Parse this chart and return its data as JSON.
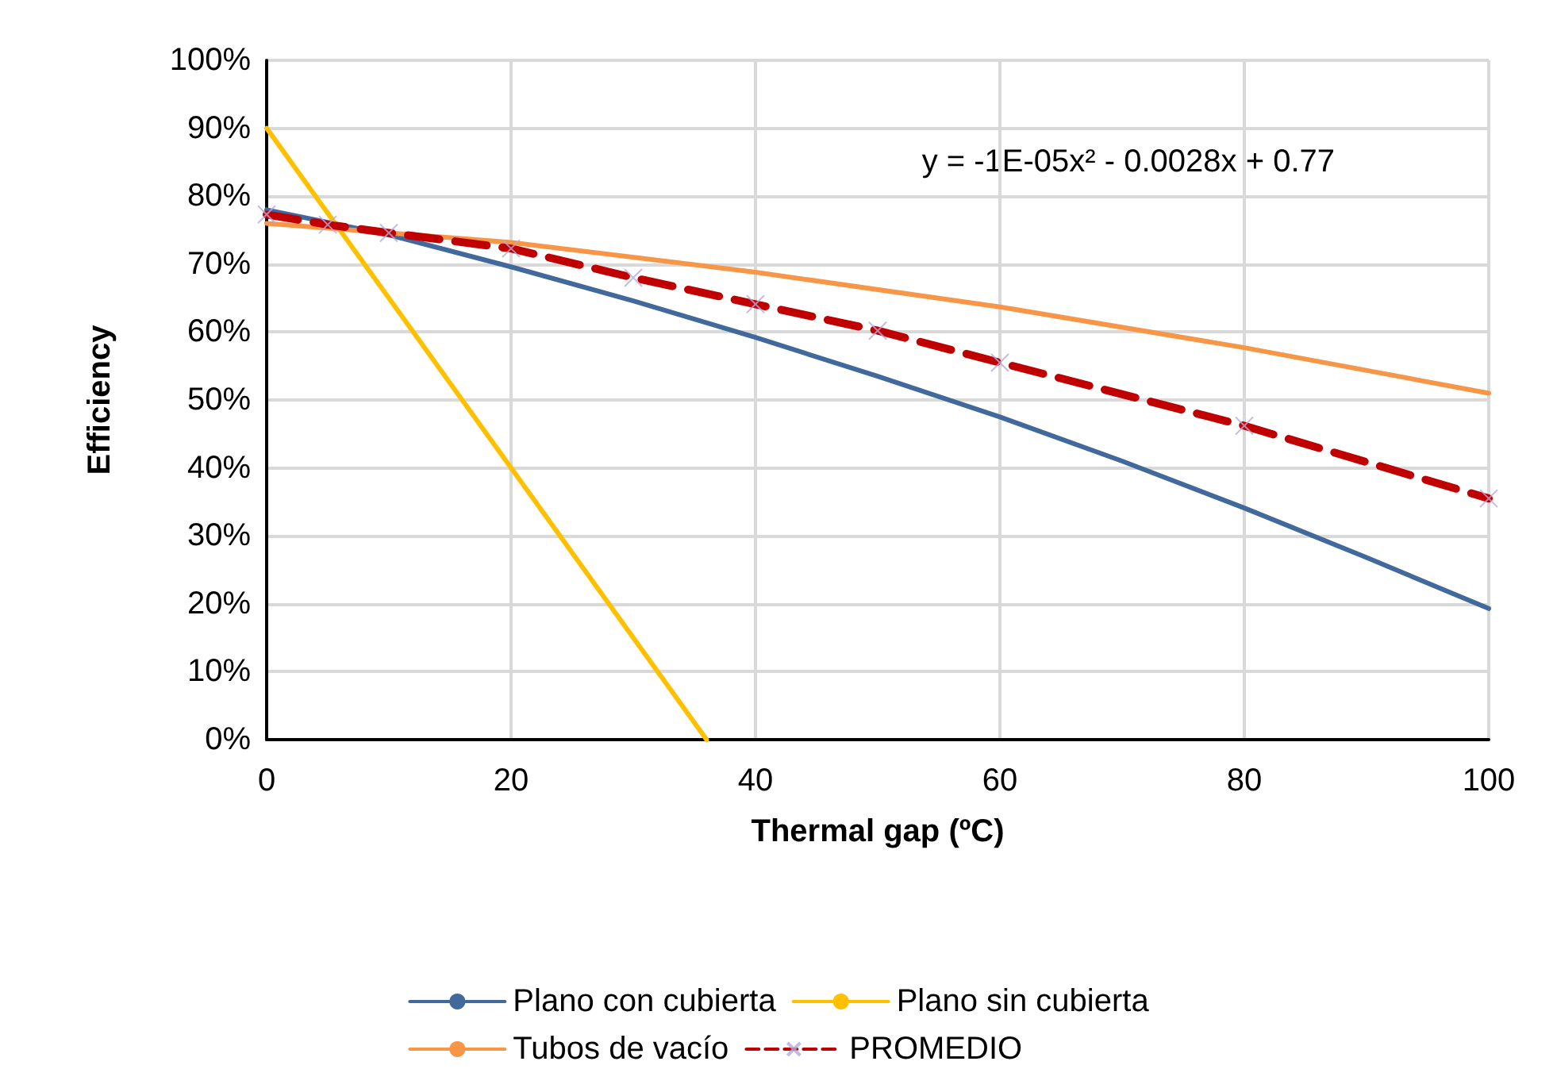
{
  "chart_data": {
    "type": "line",
    "xlabel": "Thermal gap (ºC)",
    "ylabel": "Efficiency",
    "xlim": [
      0,
      100
    ],
    "xticks": [
      0,
      20,
      40,
      60,
      80,
      100
    ],
    "ylim": [
      0,
      1
    ],
    "yticks": [
      {
        "value": 0,
        "label": "0%"
      },
      {
        "value": 0.1,
        "label": "10%"
      },
      {
        "value": 0.2,
        "label": "20%"
      },
      {
        "value": 0.3,
        "label": "30%"
      },
      {
        "value": 0.4,
        "label": "40%"
      },
      {
        "value": 0.5,
        "label": "50%"
      },
      {
        "value": 0.6,
        "label": "60%"
      },
      {
        "value": 0.7,
        "label": "70%"
      },
      {
        "value": 0.8,
        "label": "80%"
      },
      {
        "value": 0.9,
        "label": "90%"
      },
      {
        "value": 1,
        "label": "100%"
      }
    ],
    "grid": true,
    "legend": "bottom",
    "annotations": [
      "y = -1E-05x² - 0.0028x + 0.77"
    ],
    "series": [
      {
        "name": "Plano con cubierta",
        "color": "#41699b",
        "x": [
          0,
          10,
          20,
          30,
          40,
          50,
          60,
          70,
          80,
          90,
          100
        ],
        "values": [
          0.78,
          0.743,
          0.696,
          0.646,
          0.592,
          0.535,
          0.475,
          0.41,
          0.341,
          0.268,
          0.193
        ],
        "marker": "none",
        "line_style": "solid"
      },
      {
        "name": "Plano sin cubierta",
        "color": "#ffc000",
        "x": [
          0,
          20,
          36
        ],
        "values": [
          0.9,
          0.4,
          0
        ],
        "marker": "none",
        "line_style": "solid"
      },
      {
        "name": "Tubos de vacío",
        "color": "#f79646",
        "x": [
          0,
          20,
          40,
          60,
          80,
          100
        ],
        "values": [
          0.76,
          0.732,
          0.688,
          0.637,
          0.577,
          0.51
        ],
        "marker": "none",
        "line_style": "solid"
      },
      {
        "name": "PROMEDIO",
        "color": "#c00000",
        "x": [
          0,
          5,
          10,
          20,
          30,
          40,
          50,
          60,
          80,
          100
        ],
        "values": [
          0.773,
          0.758,
          0.746,
          0.723,
          0.68,
          0.641,
          0.602,
          0.555,
          0.462,
          0.355
        ],
        "marker": "cross",
        "line_style": "dashed"
      }
    ]
  }
}
